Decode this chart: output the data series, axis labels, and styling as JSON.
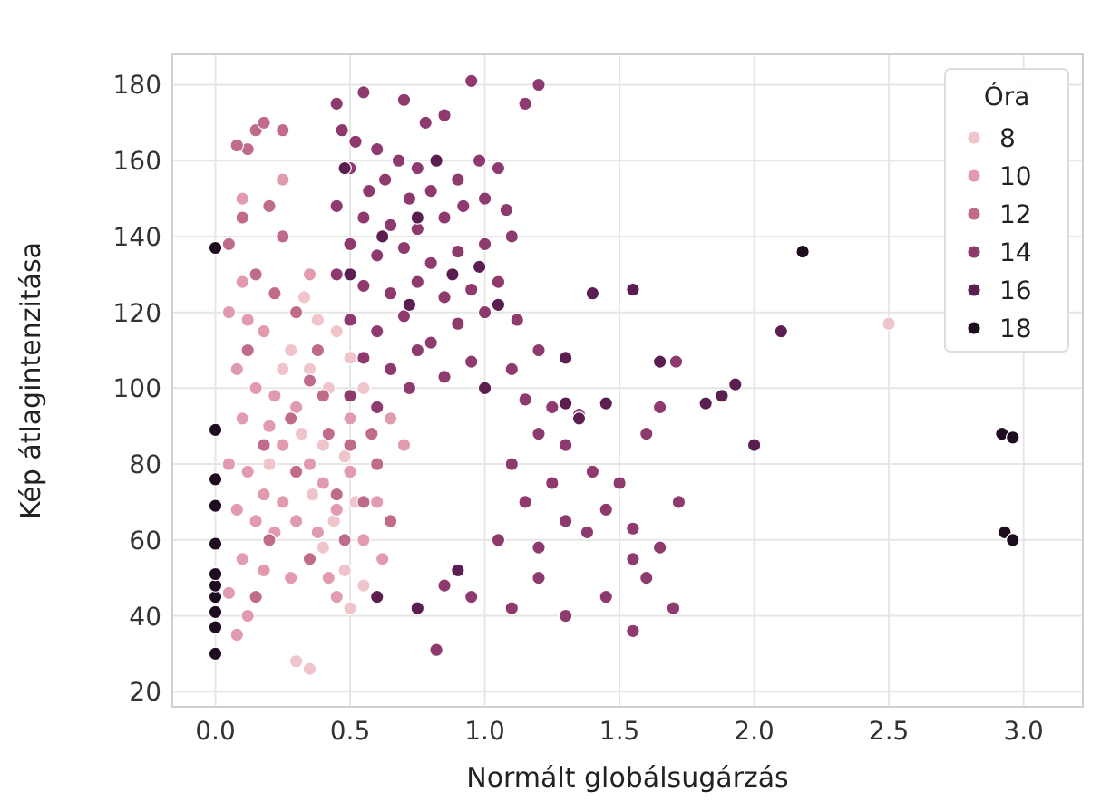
{
  "chart_data": {
    "type": "scatter",
    "xlabel": "Normált globálsugárzás",
    "ylabel": "Kép átlagintenzitása",
    "legend_title": "Óra",
    "legend": "top right",
    "grid": true,
    "marker": "circle",
    "xlim": [
      -0.16,
      3.22
    ],
    "ylim": [
      16,
      188
    ],
    "xticks": [
      {
        "value": 0,
        "label": "0.0"
      },
      {
        "value": 0.5,
        "label": "0.5"
      },
      {
        "value": 1,
        "label": "1.0"
      },
      {
        "value": 1.5,
        "label": "1.5"
      },
      {
        "value": 2,
        "label": "2.0"
      },
      {
        "value": 2.5,
        "label": "2.5"
      },
      {
        "value": 3,
        "label": "3.0"
      }
    ],
    "yticks": [
      20,
      40,
      60,
      80,
      100,
      120,
      140,
      160,
      180
    ],
    "series": [
      {
        "name": "8",
        "color": "#efc4ca",
        "x": [
          0.33,
          0.38,
          0.45,
          0.35,
          0.42,
          0.5,
          0.28,
          0.32,
          0.4,
          0.48,
          0.36,
          0.44,
          0.52,
          0.4,
          0.48,
          0.55,
          0.5,
          0.3,
          0.35,
          0.2,
          0.55,
          0.25,
          2.5
        ],
        "values": [
          124,
          118,
          115,
          105,
          100,
          108,
          110,
          88,
          85,
          82,
          72,
          65,
          70,
          58,
          52,
          48,
          42,
          28,
          26,
          80,
          100,
          105,
          117
        ]
      },
      {
        "name": "10",
        "color": "#e19aae",
        "x": [
          0.1,
          0.05,
          0.12,
          0.18,
          0.08,
          0.15,
          0.22,
          0.1,
          0.2,
          0.25,
          0.05,
          0.12,
          0.18,
          0.25,
          0.08,
          0.15,
          0.22,
          0.3,
          0.1,
          0.18,
          0.28,
          0.05,
          0.12,
          0.08,
          0.35,
          0.4,
          0.45,
          0.5,
          0.55,
          0.38,
          0.42,
          0.3,
          0.35,
          0.25,
          0.1,
          0.6,
          0.65,
          0.5,
          0.7,
          0.62,
          0.45
        ],
        "values": [
          150,
          120,
          118,
          115,
          105,
          100,
          98,
          92,
          90,
          85,
          80,
          78,
          72,
          70,
          68,
          65,
          62,
          65,
          55,
          52,
          50,
          46,
          40,
          35,
          80,
          75,
          68,
          78,
          60,
          62,
          50,
          95,
          130,
          155,
          128,
          70,
          92,
          92,
          85,
          55,
          45
        ]
      },
      {
        "name": "12",
        "color": "#c06a8c",
        "x": [
          0.25,
          0.15,
          0.18,
          0.12,
          0.08,
          0.2,
          0.25,
          0.1,
          0.05,
          0.15,
          0.22,
          0.3,
          0.12,
          0.35,
          0.4,
          0.28,
          0.18,
          0.42,
          0.3,
          0.5,
          0.45,
          0.55,
          0.6,
          0.2,
          0.35,
          0.15,
          0.65,
          0.48,
          0.38,
          0.58
        ],
        "values": [
          168,
          168,
          170,
          163,
          164,
          148,
          140,
          145,
          138,
          130,
          125,
          120,
          110,
          102,
          98,
          92,
          85,
          88,
          78,
          85,
          72,
          70,
          80,
          60,
          55,
          45,
          65,
          60,
          110,
          88
        ]
      },
      {
        "name": "14",
        "color": "#8e3a6e",
        "x": [
          0.45,
          0.55,
          0.7,
          0.78,
          0.85,
          0.95,
          1.2,
          1.15,
          0.47,
          0.52,
          0.6,
          0.68,
          0.75,
          0.5,
          0.57,
          0.63,
          0.72,
          0.8,
          0.9,
          0.98,
          1.05,
          0.45,
          0.55,
          0.65,
          0.75,
          0.85,
          0.92,
          1.0,
          1.08,
          0.5,
          0.6,
          0.7,
          0.8,
          0.9,
          1.0,
          1.1,
          0.45,
          0.55,
          0.65,
          0.75,
          0.85,
          0.95,
          1.05,
          0.5,
          0.6,
          0.7,
          0.8,
          0.9,
          1.0,
          1.12,
          0.55,
          0.65,
          0.75,
          0.85,
          0.95,
          1.1,
          1.2,
          0.5,
          0.6,
          0.72,
          1.15,
          1.25,
          1.35,
          1.2,
          1.3,
          1.1,
          1.25,
          1.4,
          1.5,
          1.15,
          1.3,
          1.45,
          1.55,
          1.05,
          1.2,
          1.38,
          1.55,
          1.6,
          1.7,
          1.45,
          1.3,
          1.1,
          0.95,
          0.85,
          1.2,
          1.55,
          0.82,
          1.65,
          1.72,
          1.6,
          1.65,
          1.71
        ],
        "values": [
          175,
          178,
          176,
          170,
          172,
          181,
          180,
          175,
          168,
          165,
          163,
          160,
          158,
          158,
          152,
          155,
          150,
          152,
          155,
          160,
          158,
          148,
          145,
          143,
          142,
          145,
          148,
          150,
          147,
          138,
          135,
          137,
          133,
          136,
          138,
          140,
          130,
          127,
          125,
          128,
          124,
          126,
          128,
          118,
          115,
          119,
          112,
          117,
          120,
          118,
          108,
          105,
          110,
          103,
          107,
          105,
          110,
          98,
          95,
          100,
          97,
          95,
          93,
          88,
          85,
          80,
          75,
          78,
          75,
          70,
          65,
          68,
          63,
          60,
          58,
          62,
          55,
          50,
          42,
          45,
          40,
          42,
          45,
          48,
          50,
          36,
          31,
          58,
          70,
          88,
          95,
          107
        ]
      },
      {
        "name": "16",
        "color": "#5a1e50",
        "x": [
          0.5,
          0.62,
          0.75,
          0.88,
          0.98,
          1.05,
          0.72,
          0.48,
          0.82,
          1.0,
          1.3,
          1.4,
          1.55,
          1.65,
          1.82,
          1.88,
          1.93,
          2.0,
          1.3,
          1.45,
          1.35,
          2.1,
          0.6,
          0.75,
          0.9
        ],
        "values": [
          130,
          140,
          145,
          130,
          132,
          122,
          122,
          158,
          160,
          100,
          108,
          125,
          126,
          107,
          96,
          98,
          101,
          85,
          96,
          96,
          92,
          115,
          45,
          42,
          52
        ]
      },
      {
        "name": "18",
        "color": "#1e0c1f",
        "x": [
          0,
          0,
          0,
          0,
          0,
          0,
          0,
          0,
          0,
          0,
          0,
          2.93,
          2.96,
          2.92,
          2.96,
          2.18
        ],
        "values": [
          30,
          37,
          41,
          45,
          48,
          51,
          59,
          69,
          76,
          89,
          137,
          62,
          60,
          88,
          87,
          136
        ]
      }
    ]
  }
}
